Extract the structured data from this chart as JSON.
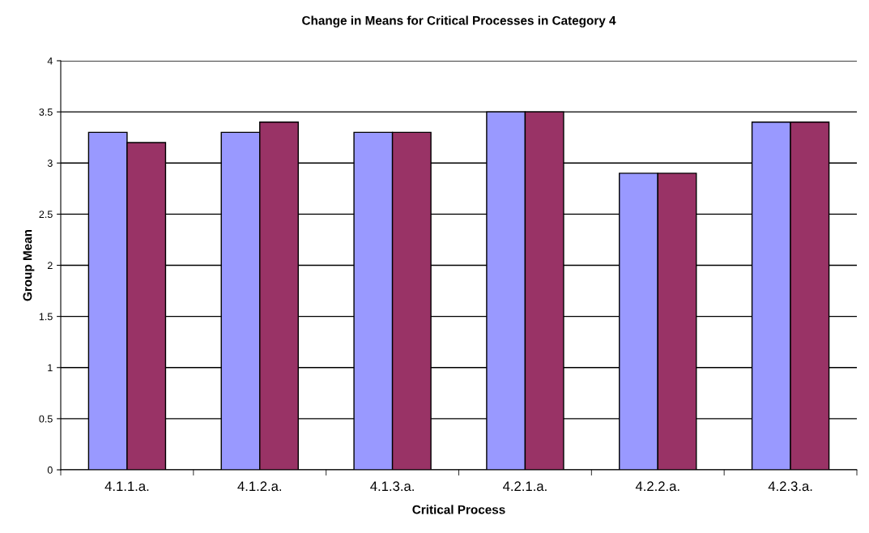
{
  "chart_data": {
    "type": "bar",
    "title": "Change in Means for Critical Processes in Category 4",
    "xlabel": "Critical Process",
    "ylabel": "Group Mean",
    "categories": [
      "4.1.1.a.",
      "4.1.2.a.",
      "4.1.3.a.",
      "4.2.1.a.",
      "4.2.2.a.",
      "4.2.3.a."
    ],
    "series": [
      {
        "color": "#9999ff",
        "values": [
          3.3,
          3.3,
          3.3,
          3.5,
          2.9,
          3.4
        ]
      },
      {
        "color": "#993366",
        "values": [
          3.2,
          3.4,
          3.3,
          3.5,
          2.9,
          3.4
        ]
      }
    ],
    "ylim": [
      0,
      4
    ],
    "yticks": [
      0,
      0.5,
      1,
      1.5,
      2,
      2.5,
      3,
      3.5,
      4
    ],
    "grid": "y"
  }
}
